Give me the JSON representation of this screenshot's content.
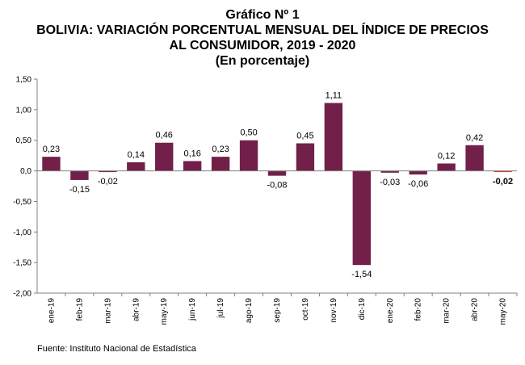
{
  "title_lines": [
    "Gráfico Nº 1",
    "BOLIVIA: VARIACIÓN PORCENTUAL MENSUAL DEL ÍNDICE DE PRECIOS",
    "AL CONSUMIDOR, 2019 - 2020",
    "(En porcentaje)"
  ],
  "source": "Fuente: Instituto Nacional de Estadística",
  "colors": {
    "bar": "#722049",
    "highlight": "#e0322e",
    "axis": "#808080"
  },
  "chart_data": {
    "type": "bar",
    "categories": [
      "ene-19",
      "feb-19",
      "mar-19",
      "abr-19",
      "may-19",
      "jun-19",
      "jul-19",
      "ago-19",
      "sep-19",
      "oct-19",
      "nov-19",
      "dic-19",
      "ene-20",
      "feb-20",
      "mar-20",
      "abr-20",
      "may-20"
    ],
    "values": [
      0.23,
      -0.15,
      -0.02,
      0.14,
      0.46,
      0.16,
      0.23,
      0.5,
      -0.08,
      0.45,
      1.11,
      -1.54,
      -0.03,
      -0.06,
      0.12,
      0.42,
      -0.02
    ],
    "labels": [
      "0,23",
      "-0,15",
      "-0,02",
      "0,14",
      "0,46",
      "0,16",
      "0,23",
      "0,50",
      "-0,08",
      "0,45",
      "1,11",
      "-1,54",
      "-0,03",
      "-0,06",
      "0,12",
      "0,42",
      "-0,02"
    ],
    "highlight_index": 16,
    "ylim": [
      -2.0,
      1.5
    ],
    "yticks": [
      1.5,
      1.0,
      0.5,
      0.0,
      -0.5,
      -1.0,
      -1.5,
      -2.0
    ],
    "ytick_labels": [
      "1,50",
      "1,00",
      "0,50",
      "0,0",
      "-0,50",
      "-1,00",
      "-1,50",
      "-2,00"
    ],
    "grid": false,
    "legend": "none"
  }
}
